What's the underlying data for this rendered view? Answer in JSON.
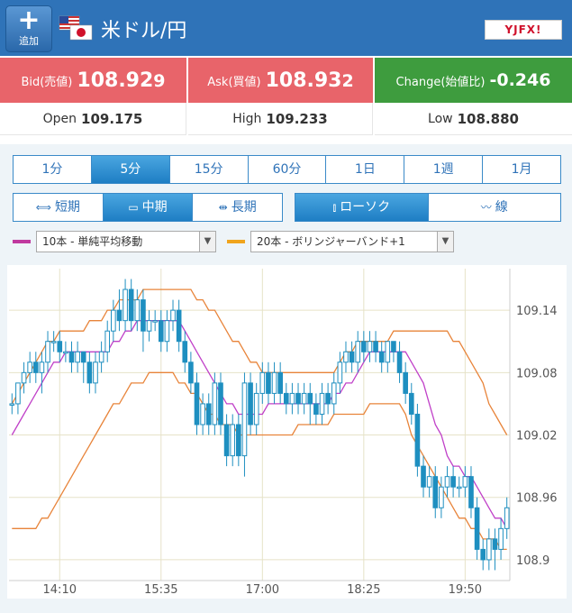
{
  "header": {
    "add_label": "追加",
    "pair": "米ドル/円",
    "brand": "YJFX!"
  },
  "quotes": {
    "bid_label": "Bid(売値)",
    "bid_main": "108.92",
    "bid_tail": "9",
    "ask_label": "Ask(買値)",
    "ask_main": "108.93",
    "ask_tail": "2",
    "change_label": "Change(始値比)",
    "change_value": "-0.246"
  },
  "stats": {
    "open_label": "Open",
    "open_value": "109.175",
    "high_label": "High",
    "high_value": "109.233",
    "low_label": "Low",
    "low_value": "108.880"
  },
  "timeframes": [
    "1分",
    "5分",
    "15分",
    "60分",
    "1日",
    "1週",
    "1月"
  ],
  "timeframe_active": "5分",
  "terms": [
    "短期",
    "中期",
    "長期"
  ],
  "term_active": "中期",
  "chart_types": [
    "ローソク",
    "線"
  ],
  "chart_type_active": "ローソク",
  "indicators": {
    "ma": {
      "label": "10本 - 単純平均移動",
      "color": "#c0399f"
    },
    "bb": {
      "label": "20本 - ボリンジャーバンド+1",
      "color": "#f0a41d"
    }
  },
  "colors": {
    "candle": "#1e8fc0",
    "ma_line": "#c040c8",
    "bb_line": "#e8843a",
    "bid_bg": "#e8646a",
    "change_bg": "#3e9c3e",
    "header_bg": "#2f73b8"
  },
  "chart_data": {
    "type": "candlestick",
    "x_tick_labels": [
      "14:10",
      "15:35",
      "17:00",
      "18:25",
      "19:50"
    ],
    "y_tick_labels": [
      "109.14",
      "109.08",
      "109.02",
      "108.96",
      "108.9"
    ],
    "ylim": [
      108.88,
      109.18
    ],
    "candles": [
      [
        109.05,
        109.05,
        109.06,
        109.04
      ],
      [
        109.05,
        109.07,
        109.07,
        109.04
      ],
      [
        109.07,
        109.08,
        109.09,
        109.06
      ],
      [
        109.08,
        109.09,
        109.1,
        109.07
      ],
      [
        109.09,
        109.08,
        109.1,
        109.07
      ],
      [
        109.08,
        109.09,
        109.1,
        109.06
      ],
      [
        109.09,
        109.11,
        109.12,
        109.08
      ],
      [
        109.11,
        109.11,
        109.12,
        109.1
      ],
      [
        109.11,
        109.1,
        109.12,
        109.09
      ],
      [
        109.1,
        109.1,
        109.11,
        109.09
      ],
      [
        109.1,
        109.09,
        109.11,
        109.08
      ],
      [
        109.09,
        109.1,
        109.11,
        109.08
      ],
      [
        109.1,
        109.09,
        109.1,
        109.07
      ],
      [
        109.09,
        109.07,
        109.1,
        109.06
      ],
      [
        109.07,
        109.09,
        109.1,
        109.06
      ],
      [
        109.09,
        109.1,
        109.11,
        109.08
      ],
      [
        109.1,
        109.12,
        109.13,
        109.09
      ],
      [
        109.12,
        109.14,
        109.15,
        109.11
      ],
      [
        109.14,
        109.13,
        109.16,
        109.12
      ],
      [
        109.13,
        109.16,
        109.17,
        109.12
      ],
      [
        109.16,
        109.13,
        109.17,
        109.12
      ],
      [
        109.13,
        109.15,
        109.16,
        109.12
      ],
      [
        109.15,
        109.12,
        109.16,
        109.1
      ],
      [
        109.12,
        109.13,
        109.14,
        109.11
      ],
      [
        109.13,
        109.13,
        109.14,
        109.12
      ],
      [
        109.13,
        109.11,
        109.14,
        109.1
      ],
      [
        109.11,
        109.13,
        109.14,
        109.1
      ],
      [
        109.13,
        109.14,
        109.15,
        109.12
      ],
      [
        109.14,
        109.11,
        109.15,
        109.1
      ],
      [
        109.11,
        109.09,
        109.12,
        109.08
      ],
      [
        109.09,
        109.07,
        109.1,
        109.06
      ],
      [
        109.07,
        109.03,
        109.08,
        109.02
      ],
      [
        109.03,
        109.05,
        109.06,
        109.02
      ],
      [
        109.05,
        109.03,
        109.06,
        109.02
      ],
      [
        109.03,
        109.07,
        109.08,
        109.02
      ],
      [
        109.07,
        109.03,
        109.08,
        109.02
      ],
      [
        109.03,
        109.0,
        109.04,
        108.99
      ],
      [
        109.0,
        109.03,
        109.04,
        108.99
      ],
      [
        109.03,
        109.0,
        109.04,
        108.99
      ],
      [
        109.0,
        109.07,
        109.08,
        108.98
      ],
      [
        109.07,
        109.03,
        109.08,
        109.02
      ],
      [
        109.03,
        109.06,
        109.07,
        109.02
      ],
      [
        109.06,
        109.08,
        109.09,
        109.05
      ],
      [
        109.08,
        109.06,
        109.09,
        109.05
      ],
      [
        109.06,
        109.08,
        109.09,
        109.05
      ],
      [
        109.08,
        109.06,
        109.09,
        109.05
      ],
      [
        109.06,
        109.05,
        109.07,
        109.04
      ],
      [
        109.05,
        109.06,
        109.07,
        109.04
      ],
      [
        109.06,
        109.05,
        109.07,
        109.04
      ],
      [
        109.05,
        109.06,
        109.07,
        109.04
      ],
      [
        109.06,
        109.05,
        109.07,
        109.03
      ],
      [
        109.05,
        109.04,
        109.06,
        109.03
      ],
      [
        109.04,
        109.06,
        109.07,
        109.03
      ],
      [
        109.06,
        109.05,
        109.07,
        109.04
      ],
      [
        109.05,
        109.07,
        109.08,
        109.04
      ],
      [
        109.07,
        109.09,
        109.1,
        109.06
      ],
      [
        109.09,
        109.1,
        109.11,
        109.08
      ],
      [
        109.1,
        109.09,
        109.11,
        109.08
      ],
      [
        109.09,
        109.11,
        109.12,
        109.08
      ],
      [
        109.11,
        109.1,
        109.12,
        109.09
      ],
      [
        109.1,
        109.11,
        109.12,
        109.09
      ],
      [
        109.11,
        109.1,
        109.12,
        109.09
      ],
      [
        109.1,
        109.09,
        109.11,
        109.08
      ],
      [
        109.09,
        109.11,
        109.11,
        109.08
      ],
      [
        109.11,
        109.1,
        109.11,
        109.09
      ],
      [
        109.1,
        109.08,
        109.11,
        109.07
      ],
      [
        109.08,
        109.06,
        109.09,
        109.05
      ],
      [
        109.06,
        109.04,
        109.07,
        109.03
      ],
      [
        109.04,
        108.99,
        109.05,
        108.98
      ],
      [
        108.99,
        108.97,
        109.0,
        108.96
      ],
      [
        108.97,
        108.98,
        108.99,
        108.96
      ],
      [
        108.98,
        108.95,
        108.99,
        108.94
      ],
      [
        108.95,
        108.97,
        108.98,
        108.94
      ],
      [
        108.97,
        108.98,
        108.99,
        108.96
      ],
      [
        108.98,
        108.97,
        108.99,
        108.96
      ],
      [
        108.97,
        108.97,
        108.98,
        108.96
      ],
      [
        108.97,
        108.98,
        108.99,
        108.96
      ],
      [
        108.98,
        108.95,
        108.99,
        108.94
      ],
      [
        108.95,
        108.91,
        108.96,
        108.9
      ],
      [
        108.91,
        108.9,
        108.92,
        108.89
      ],
      [
        108.9,
        108.92,
        108.93,
        108.89
      ],
      [
        108.92,
        108.91,
        108.93,
        108.89
      ],
      [
        108.91,
        108.93,
        108.94,
        108.9
      ],
      [
        108.93,
        108.95,
        108.96,
        108.92
      ]
    ],
    "ma_line": [
      109.02,
      109.03,
      109.04,
      109.05,
      109.06,
      109.07,
      109.08,
      109.09,
      109.09,
      109.1,
      109.1,
      109.1,
      109.1,
      109.1,
      109.1,
      109.1,
      109.1,
      109.11,
      109.11,
      109.12,
      109.12,
      109.13,
      109.13,
      109.13,
      109.13,
      109.13,
      109.13,
      109.13,
      109.13,
      109.12,
      109.11,
      109.1,
      109.09,
      109.08,
      109.07,
      109.06,
      109.05,
      109.05,
      109.04,
      109.04,
      109.04,
      109.04,
      109.04,
      109.05,
      109.05,
      109.05,
      109.05,
      109.05,
      109.05,
      109.05,
      109.05,
      109.05,
      109.05,
      109.05,
      109.06,
      109.06,
      109.07,
      109.07,
      109.08,
      109.09,
      109.1,
      109.1,
      109.1,
      109.1,
      109.1,
      109.1,
      109.1,
      109.09,
      109.08,
      109.07,
      109.05,
      109.03,
      109.02,
      109.0,
      108.99,
      108.99,
      108.98,
      108.98,
      108.97,
      108.96,
      108.95,
      108.94,
      108.94,
      108.93
    ],
    "bb_upper": [
      109.05,
      109.06,
      109.07,
      109.08,
      109.09,
      109.1,
      109.11,
      109.11,
      109.12,
      109.12,
      109.12,
      109.12,
      109.12,
      109.13,
      109.13,
      109.13,
      109.14,
      109.14,
      109.15,
      109.15,
      109.15,
      109.15,
      109.16,
      109.16,
      109.16,
      109.16,
      109.16,
      109.16,
      109.16,
      109.16,
      109.16,
      109.15,
      109.15,
      109.14,
      109.14,
      109.13,
      109.12,
      109.11,
      109.11,
      109.1,
      109.09,
      109.09,
      109.08,
      109.08,
      109.08,
      109.08,
      109.08,
      109.08,
      109.08,
      109.08,
      109.08,
      109.08,
      109.08,
      109.08,
      109.08,
      109.09,
      109.1,
      109.1,
      109.11,
      109.11,
      109.11,
      109.11,
      109.11,
      109.11,
      109.12,
      109.12,
      109.12,
      109.12,
      109.12,
      109.12,
      109.12,
      109.12,
      109.12,
      109.12,
      109.11,
      109.11,
      109.1,
      109.09,
      109.08,
      109.07,
      109.05,
      109.04,
      109.03,
      109.02
    ],
    "bb_lower": [
      108.93,
      108.93,
      108.93,
      108.93,
      108.93,
      108.94,
      108.94,
      108.95,
      108.96,
      108.97,
      108.98,
      108.99,
      109.0,
      109.01,
      109.02,
      109.03,
      109.04,
      109.05,
      109.05,
      109.06,
      109.07,
      109.07,
      109.07,
      109.08,
      109.08,
      109.08,
      109.08,
      109.08,
      109.07,
      109.07,
      109.06,
      109.06,
      109.05,
      109.04,
      109.04,
      109.03,
      109.03,
      109.03,
      109.02,
      109.02,
      109.02,
      109.02,
      109.02,
      109.02,
      109.02,
      109.02,
      109.02,
      109.02,
      109.03,
      109.03,
      109.03,
      109.03,
      109.03,
      109.03,
      109.04,
      109.04,
      109.04,
      109.04,
      109.04,
      109.04,
      109.05,
      109.05,
      109.05,
      109.05,
      109.05,
      109.05,
      109.04,
      109.02,
      109.01,
      109.0,
      108.99,
      108.98,
      108.97,
      108.96,
      108.95,
      108.94,
      108.94,
      108.93,
      108.93,
      108.92,
      108.92,
      108.92,
      108.91,
      108.91
    ]
  }
}
